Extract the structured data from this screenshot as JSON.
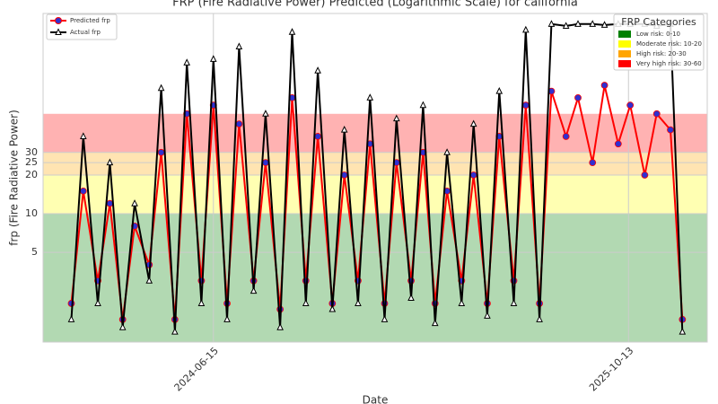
{
  "chart_data": {
    "type": "line",
    "title": "FRP (Fire Radiative Power) Predicted (Logarithmic Scale) for california",
    "x_label": "Date",
    "y_label": "frp (Fire Radiative Power)",
    "log_scale": true,
    "grid": true,
    "legend_position": "upper left",
    "xlim": [
      "2023-11-29",
      "2026-01-13"
    ],
    "xticks": [
      "2024-06-15",
      "2025-10-13"
    ],
    "ylim": [
      1,
      363
    ],
    "yticks": [
      5,
      10,
      20,
      25,
      30
    ],
    "x": [
      "2024-01-01",
      "2024-01-15",
      "2024-02-01",
      "2024-02-15",
      "2024-03-01",
      "2024-03-15",
      "2024-04-01",
      "2024-04-15",
      "2024-05-01",
      "2024-05-15",
      "2024-06-01",
      "2024-06-15",
      "2024-07-01",
      "2024-07-15",
      "2024-08-01",
      "2024-08-15",
      "2024-09-01",
      "2024-09-15",
      "2024-10-01",
      "2024-10-15",
      "2024-11-01",
      "2024-11-15",
      "2024-12-01",
      "2024-12-15",
      "2025-01-01",
      "2025-01-15",
      "2025-02-01",
      "2025-02-15",
      "2025-03-01",
      "2025-03-15",
      "2025-04-01",
      "2025-04-15",
      "2025-05-01",
      "2025-05-15",
      "2025-06-01",
      "2025-06-15",
      "2025-07-01",
      "2025-07-15",
      "2025-08-01",
      "2025-08-15",
      "2025-09-01",
      "2025-09-15",
      "2025-10-01",
      "2025-10-15",
      "2025-11-01",
      "2025-11-15",
      "2025-12-01",
      "2025-12-15"
    ],
    "series": [
      {
        "name": "Predicted frp",
        "color": "#ff0000",
        "marker_color": "#3030d0",
        "marker": "circle",
        "values": [
          2,
          15,
          3,
          12,
          1.5,
          8,
          4,
          30,
          1.5,
          60,
          3,
          70,
          2,
          50,
          3,
          25,
          1.8,
          80,
          3,
          40,
          2,
          20,
          3,
          35,
          2,
          25,
          3,
          30,
          2,
          15,
          3,
          20,
          2,
          40,
          3,
          70,
          2,
          90,
          40,
          80,
          25,
          100,
          35,
          70,
          20,
          60,
          45,
          1.5
        ]
      },
      {
        "name": "Actual frp",
        "color": "#000000",
        "marker_color": "#ffffff",
        "marker": "triangle",
        "values": [
          1.5,
          40,
          2,
          25,
          1.3,
          12,
          3,
          95,
          1.2,
          150,
          2,
          160,
          1.5,
          200,
          2.5,
          60,
          1.3,
          260,
          2,
          130,
          1.8,
          45,
          2,
          80,
          1.5,
          55,
          2.2,
          70,
          1.4,
          30,
          2,
          50,
          1.6,
          90,
          2,
          270,
          1.5,
          300,
          290,
          300,
          300,
          295,
          300,
          300,
          300,
          290,
          300,
          1.2
        ]
      }
    ],
    "bands_title": "FRP Categories",
    "bands": [
      {
        "name": "Low risk: 0-10",
        "color": "#008000",
        "range": [
          0,
          10
        ]
      },
      {
        "name": "Moderate risk: 10-20",
        "color": "#ffff00",
        "range": [
          10,
          20
        ]
      },
      {
        "name": "High risk: 20-30",
        "color": "#ffa500",
        "range": [
          20,
          30
        ]
      },
      {
        "name": "Very high risk: 30-60",
        "color": "#ff0000",
        "range": [
          30,
          60
        ]
      }
    ]
  }
}
